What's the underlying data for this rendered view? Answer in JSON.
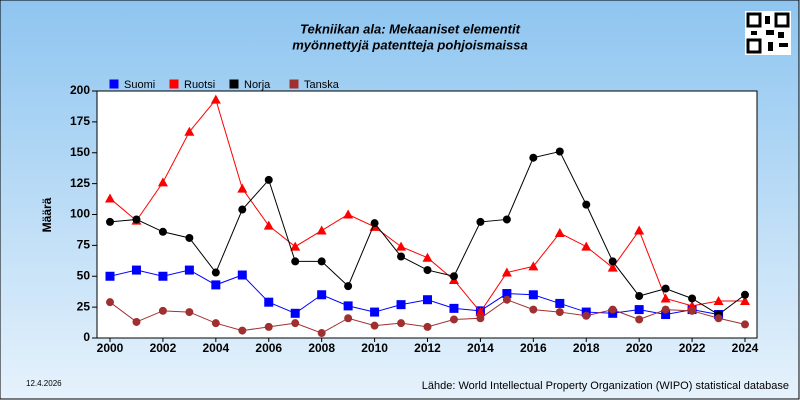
{
  "chart_data": {
    "type": "line",
    "title": "Tekniikan ala: Mekaaniset elementit",
    "subtitle": "myönnettyjä patentteja pohjoismaissa",
    "ylabel": "Määrä",
    "date": "12.4.2026",
    "source": "Lähde: World Intellectual Property Organization (WIPO) statistical database",
    "x": [
      2000,
      2001,
      2002,
      2003,
      2004,
      2005,
      2006,
      2007,
      2008,
      2009,
      2010,
      2011,
      2012,
      2013,
      2014,
      2015,
      2016,
      2017,
      2018,
      2019,
      2020,
      2021,
      2022,
      2023,
      2024
    ],
    "xlim": [
      2000,
      2024
    ],
    "xticks": [
      2000,
      2002,
      2004,
      2006,
      2008,
      2010,
      2012,
      2014,
      2016,
      2018,
      2020,
      2022,
      2024
    ],
    "ylim": [
      0,
      200
    ],
    "yticks": [
      0,
      25,
      50,
      75,
      100,
      125,
      150,
      175,
      200
    ],
    "grid": false,
    "series": [
      {
        "name": "Suomi",
        "color": "#0000ff",
        "marker": "square",
        "values": [
          50,
          55,
          50,
          55,
          43,
          51,
          29,
          20,
          35,
          26,
          21,
          27,
          31,
          24,
          22,
          36,
          35,
          28,
          21,
          20,
          23,
          19,
          23,
          19,
          null
        ]
      },
      {
        "name": "Ruotsi",
        "color": "#ff0000",
        "marker": "triangle",
        "values": [
          113,
          95,
          126,
          167,
          193,
          121,
          91,
          74,
          87,
          100,
          90,
          74,
          65,
          47,
          21,
          53,
          58,
          85,
          74,
          57,
          87,
          32,
          26,
          30,
          30
        ]
      },
      {
        "name": "Norja",
        "color": "#000000",
        "marker": "circle",
        "values": [
          94,
          96,
          86,
          81,
          53,
          104,
          128,
          62,
          62,
          42,
          93,
          66,
          55,
          50,
          94,
          96,
          146,
          151,
          108,
          62,
          34,
          40,
          32,
          19,
          35
        ]
      },
      {
        "name": "Tanska",
        "color": "#a03030",
        "marker": "circle",
        "values": [
          29,
          13,
          22,
          21,
          12,
          6,
          9,
          12,
          4,
          16,
          10,
          12,
          9,
          15,
          16,
          31,
          23,
          21,
          18,
          23,
          15,
          23,
          22,
          16,
          11
        ]
      }
    ]
  }
}
